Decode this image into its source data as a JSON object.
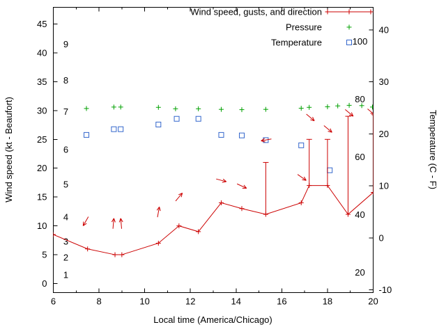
{
  "chart_data": {
    "type": "line",
    "title": "",
    "xlabel": "Local time (America/Chicago)",
    "ylabel_left": "Wind speed (kt - Beaufort)",
    "ylabel_right": "Temperature (C - F)",
    "background": "#ffffff",
    "legend": [
      {
        "label": "Wind speed, gusts, and direction",
        "marker": "red-line-plus",
        "color": "#cc0000"
      },
      {
        "label": "Pressure",
        "marker": "green-plus",
        "color": "#00a000"
      },
      {
        "label": "Temperature",
        "marker": "blue-open-square",
        "color": "#3366cc"
      }
    ],
    "axes": {
      "x": {
        "min": 6,
        "max": 20,
        "ticks": [
          6,
          8,
          10,
          12,
          14,
          16,
          18,
          20
        ],
        "minor_ticks": [
          7,
          9,
          11,
          13,
          15,
          17,
          19
        ]
      },
      "y_left_kt": {
        "ticks": [
          0,
          5,
          10,
          15,
          20,
          25,
          30,
          35,
          40,
          45
        ]
      },
      "y_left_beaufort": [
        {
          "label": "1",
          "kt": 1.5
        },
        {
          "label": "2",
          "kt": 4.5
        },
        {
          "label": "3",
          "kt": 7.3
        },
        {
          "label": "4",
          "kt": 11.5
        },
        {
          "label": "5",
          "kt": 17.2
        },
        {
          "label": "6",
          "kt": 23.2
        },
        {
          "label": "7",
          "kt": 29.8
        },
        {
          "label": "8",
          "kt": 35.2
        },
        {
          "label": "9",
          "kt": 41.5
        }
      ],
      "y_right_c": {
        "ticks": [
          -10,
          0,
          10,
          20,
          30,
          40
        ]
      },
      "y_right_f": [
        {
          "label": "20",
          "f": 20
        },
        {
          "label": "40",
          "f": 40
        },
        {
          "label": "60",
          "f": 60
        },
        {
          "label": "80",
          "f": 80
        },
        {
          "label": "100",
          "f": 100
        }
      ]
    },
    "wind": {
      "units": "kt",
      "points": [
        {
          "t": 6.0,
          "kt": 8.5
        },
        {
          "t": 7.5,
          "kt": 6.0
        },
        {
          "t": 8.7,
          "kt": 5.0
        },
        {
          "t": 9.0,
          "kt": 5.0
        },
        {
          "t": 10.6,
          "kt": 7.0
        },
        {
          "t": 11.5,
          "kt": 10.0
        },
        {
          "t": 12.35,
          "kt": 9.0
        },
        {
          "t": 13.35,
          "kt": 14.0
        },
        {
          "t": 14.25,
          "kt": 13.0
        },
        {
          "t": 15.3,
          "kt": 12.0,
          "gust": 21.0
        },
        {
          "t": 16.85,
          "kt": 14.0
        },
        {
          "t": 17.2,
          "kt": 17.0,
          "gust": 25.0
        },
        {
          "t": 18.0,
          "kt": 17.0,
          "gust": 25.0
        },
        {
          "t": 18.9,
          "kt": 12.0,
          "gust": 29.0
        },
        {
          "t": 20.0,
          "kt": 15.8,
          "gust": 29.5
        }
      ],
      "arrows": [
        {
          "t": 7.42,
          "kt": 10.8,
          "deg": 240
        },
        {
          "t": 8.63,
          "kt": 10.4,
          "deg": 85
        },
        {
          "t": 8.97,
          "kt": 10.4,
          "deg": 95
        },
        {
          "t": 10.6,
          "kt": 12.4,
          "deg": 80
        },
        {
          "t": 11.5,
          "kt": 15.0,
          "deg": 50
        },
        {
          "t": 13.35,
          "kt": 17.9,
          "deg": -15
        },
        {
          "t": 14.25,
          "kt": 16.9,
          "deg": -25
        },
        {
          "t": 15.32,
          "kt": 24.9,
          "deg": 190
        },
        {
          "t": 16.88,
          "kt": 18.4,
          "deg": -35
        },
        {
          "t": 17.25,
          "kt": 28.8,
          "deg": -40
        },
        {
          "t": 18.02,
          "kt": 26.8,
          "deg": -40
        },
        {
          "t": 18.95,
          "kt": 29.6,
          "deg": -40
        },
        {
          "t": 19.93,
          "kt": 29.7,
          "deg": -40
        }
      ]
    },
    "pressure_inhg": {
      "units": "inHg (plotted on left numeric scale)",
      "points": [
        {
          "t": 7.45,
          "v": 30.35
        },
        {
          "t": 8.65,
          "v": 30.6
        },
        {
          "t": 8.95,
          "v": 30.6
        },
        {
          "t": 10.6,
          "v": 30.55
        },
        {
          "t": 11.35,
          "v": 30.3
        },
        {
          "t": 12.35,
          "v": 30.3
        },
        {
          "t": 13.35,
          "v": 30.2
        },
        {
          "t": 14.25,
          "v": 30.15
        },
        {
          "t": 15.3,
          "v": 30.2
        },
        {
          "t": 16.85,
          "v": 30.4
        },
        {
          "t": 17.2,
          "v": 30.55
        },
        {
          "t": 18.0,
          "v": 30.65
        },
        {
          "t": 18.45,
          "v": 30.8
        },
        {
          "t": 18.95,
          "v": 30.9
        },
        {
          "t": 19.5,
          "v": 30.85
        },
        {
          "t": 19.97,
          "v": 30.6
        }
      ]
    },
    "temperature_c": {
      "units": "C",
      "points": [
        {
          "t": 7.45,
          "c": 19.8
        },
        {
          "t": 8.65,
          "c": 20.9
        },
        {
          "t": 8.95,
          "c": 20.9
        },
        {
          "t": 10.6,
          "c": 21.8
        },
        {
          "t": 11.4,
          "c": 22.9
        },
        {
          "t": 12.35,
          "c": 22.9
        },
        {
          "t": 13.35,
          "c": 19.8
        },
        {
          "t": 14.25,
          "c": 19.7
        },
        {
          "t": 15.3,
          "c": 18.8
        },
        {
          "t": 16.85,
          "c": 17.8
        },
        {
          "t": 18.1,
          "c": 13.0
        }
      ]
    }
  }
}
